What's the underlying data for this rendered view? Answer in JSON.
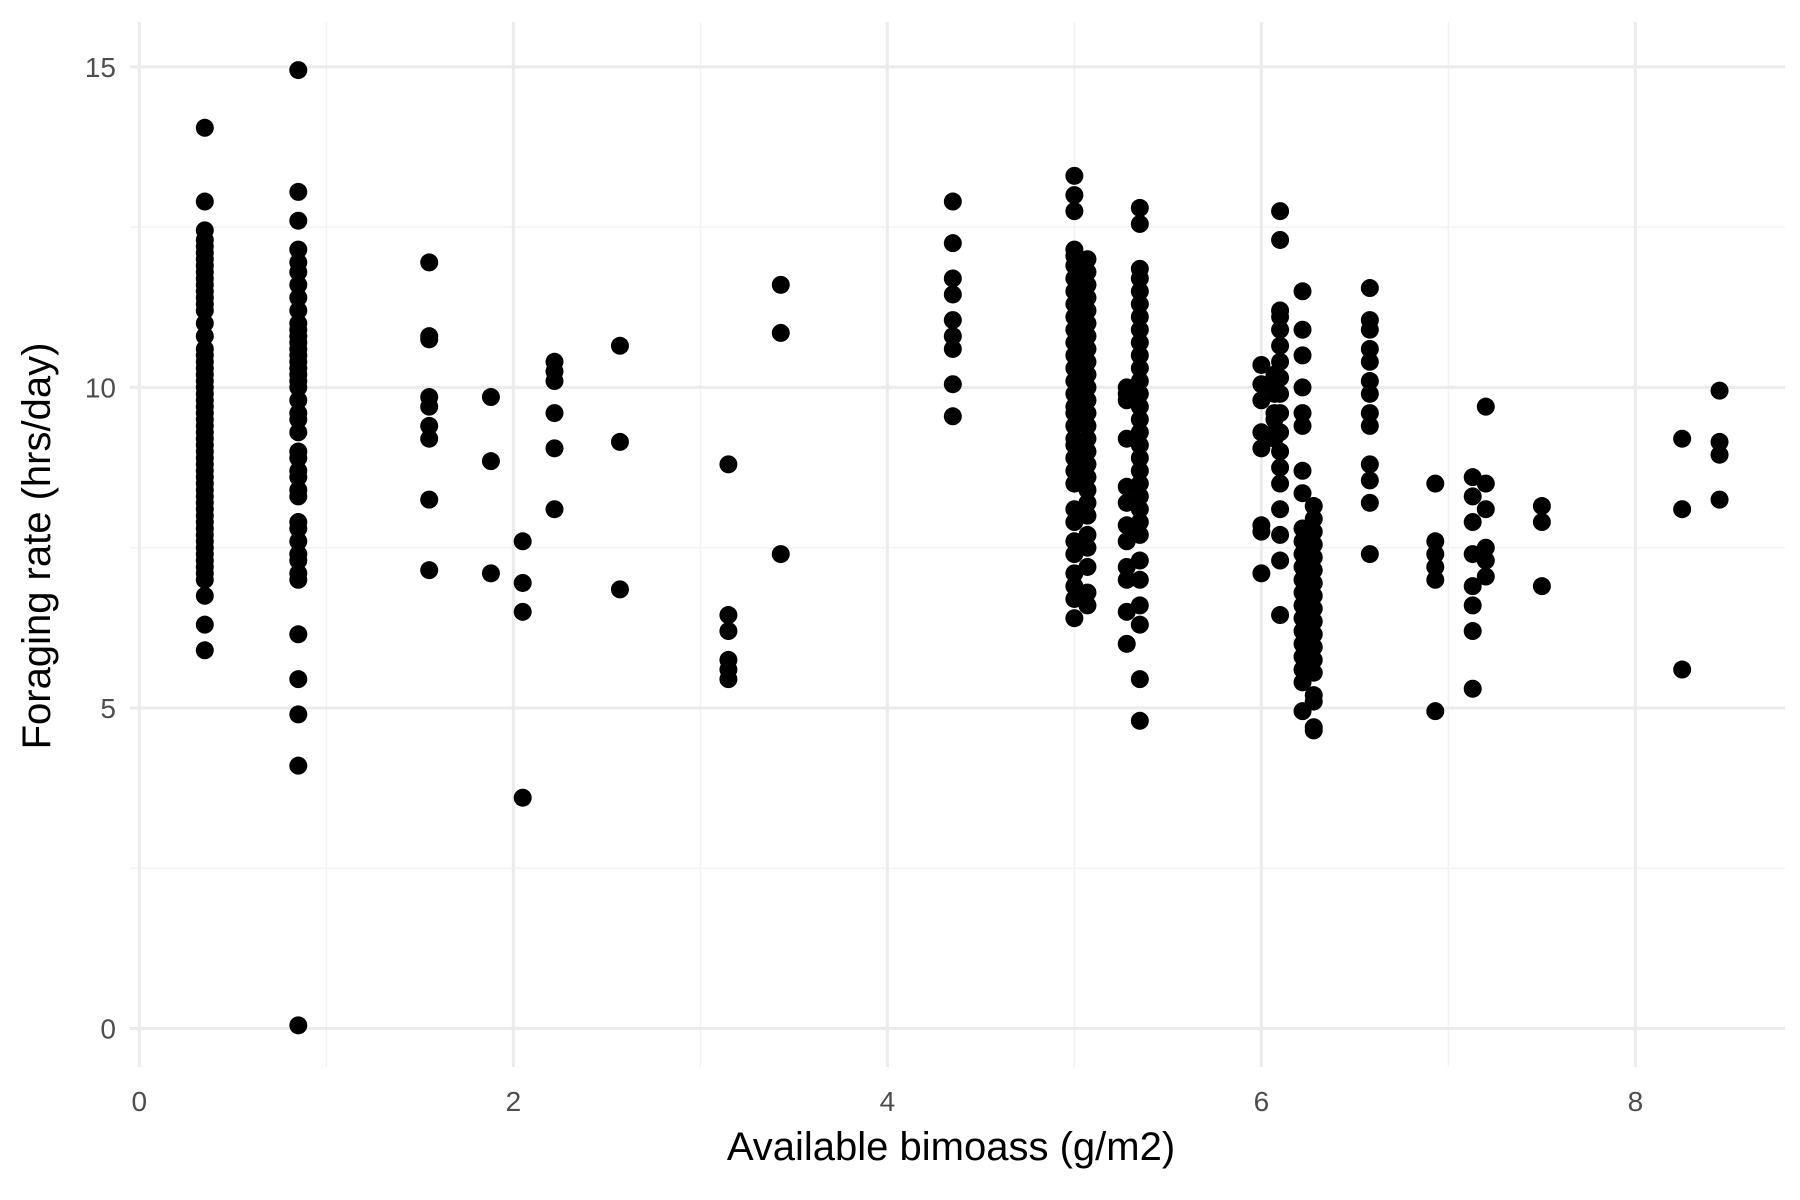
{
  "chart_data": {
    "type": "scatter",
    "title": "",
    "xlabel": "Available bimoass (g/m2)",
    "ylabel": "Foraging rate (hrs/day)",
    "xlim": [
      -0.05,
      8.8
    ],
    "ylim": [
      -0.6,
      15.7
    ],
    "xticks": [
      0,
      2,
      4,
      6,
      8
    ],
    "yticks": [
      0,
      5,
      10,
      15
    ],
    "grid": true,
    "legend": "none",
    "point_color": "#000000",
    "groups": [
      {
        "x": 0.35,
        "y": [
          14.05,
          12.9,
          12.45,
          12.3,
          12.2,
          12.1,
          12.0,
          11.9,
          11.8,
          11.7,
          11.6,
          11.5,
          11.4,
          11.3,
          11.2,
          11.0,
          10.8,
          10.6,
          10.5,
          10.4,
          10.3,
          10.2,
          10.1,
          10.0,
          9.9,
          9.8,
          9.7,
          9.6,
          9.5,
          9.4,
          9.3,
          9.2,
          9.1,
          9.0,
          8.9,
          8.8,
          8.7,
          8.6,
          8.5,
          8.4,
          8.3,
          8.2,
          8.1,
          8.0,
          7.9,
          7.8,
          7.7,
          7.6,
          7.5,
          7.4,
          7.3,
          7.2,
          7.1,
          7.0,
          6.75,
          6.3,
          5.9
        ]
      },
      {
        "x": 0.85,
        "y": [
          14.95,
          13.05,
          12.6,
          12.15,
          11.95,
          11.8,
          11.6,
          11.4,
          11.2,
          11.0,
          10.9,
          10.8,
          10.7,
          10.6,
          10.5,
          10.4,
          10.3,
          10.2,
          10.1,
          10.0,
          9.8,
          9.6,
          9.5,
          9.3,
          9.0,
          8.9,
          8.7,
          8.6,
          8.4,
          8.3,
          7.9,
          7.8,
          7.6,
          7.4,
          7.3,
          7.1,
          7.0,
          6.15,
          5.45,
          4.9,
          4.1,
          0.05
        ]
      },
      {
        "x": 1.55,
        "y": [
          11.95,
          10.8,
          10.75,
          9.85,
          9.7,
          9.4,
          9.2,
          8.25,
          7.15
        ]
      },
      {
        "x": 1.88,
        "y": [
          9.85,
          8.85,
          7.1
        ]
      },
      {
        "x": 2.05,
        "y": [
          7.6,
          6.95,
          6.5,
          3.6
        ]
      },
      {
        "x": 2.22,
        "y": [
          10.4,
          10.25,
          10.1,
          9.6,
          9.05,
          8.1
        ]
      },
      {
        "x": 2.57,
        "y": [
          10.65,
          9.15,
          6.85
        ]
      },
      {
        "x": 3.15,
        "y": [
          8.8,
          6.45,
          6.2,
          5.75,
          5.6,
          5.45
        ]
      },
      {
        "x": 3.43,
        "y": [
          11.6,
          10.85,
          7.4
        ]
      },
      {
        "x": 4.35,
        "y": [
          12.9,
          12.25,
          11.7,
          11.45,
          11.05,
          10.8,
          10.6,
          10.05,
          9.55
        ]
      },
      {
        "x": 5.0,
        "y": [
          13.3,
          13.0,
          12.75,
          12.15,
          12.05,
          11.9,
          11.7,
          11.5,
          11.3,
          11.1,
          10.9,
          10.7,
          10.5,
          10.3,
          10.1,
          9.9,
          9.7,
          9.6,
          9.4,
          9.2,
          9.1,
          8.9,
          8.7,
          8.5,
          8.1,
          7.9,
          7.6,
          7.4,
          7.1,
          6.9,
          6.7,
          6.4
        ]
      },
      {
        "x": 5.07,
        "y": [
          12.0,
          11.8,
          11.6,
          11.4,
          11.2,
          11.0,
          10.8,
          10.6,
          10.4,
          10.2,
          10.0,
          9.8,
          9.6,
          9.4,
          9.2,
          9.0,
          8.8,
          8.6,
          8.4,
          8.2,
          8.0,
          7.7,
          7.5,
          7.2,
          6.8,
          6.6
        ]
      },
      {
        "x": 5.28,
        "y": [
          10.0,
          9.9,
          9.8,
          9.2,
          8.45,
          8.2,
          7.85,
          7.6,
          7.2,
          7.0,
          6.5,
          6.0
        ]
      },
      {
        "x": 5.35,
        "y": [
          12.8,
          12.55,
          11.85,
          11.7,
          11.5,
          11.3,
          11.1,
          10.9,
          10.7,
          10.5,
          10.3,
          10.1,
          9.9,
          9.7,
          9.5,
          9.3,
          9.1,
          8.9,
          8.7,
          8.5,
          8.3,
          8.1,
          7.9,
          7.7,
          7.3,
          7.0,
          6.6,
          6.3,
          5.45,
          4.8
        ]
      },
      {
        "x": 6.0,
        "y": [
          10.35,
          10.05,
          9.8,
          9.3,
          9.05,
          7.85,
          7.75,
          7.1
        ]
      },
      {
        "x": 6.07,
        "y": [
          10.2,
          10.0,
          9.9,
          9.6,
          9.5,
          9.3,
          9.2
        ]
      },
      {
        "x": 6.1,
        "y": [
          12.75,
          12.3,
          11.2,
          11.1,
          10.9,
          10.65,
          10.4,
          10.15,
          9.9,
          9.6,
          9.3,
          9.0,
          8.75,
          8.5,
          8.1,
          7.7,
          7.3,
          6.45
        ]
      },
      {
        "x": 6.22,
        "y": [
          11.5,
          10.9,
          10.5,
          10.0,
          9.6,
          9.4,
          8.7,
          8.35,
          7.8,
          7.6,
          7.4,
          7.2,
          7.0,
          6.8,
          6.6,
          6.4,
          6.2,
          6.0,
          5.8,
          5.6,
          5.4,
          4.95
        ]
      },
      {
        "x": 6.28,
        "y": [
          8.15,
          7.95,
          7.75,
          7.55,
          7.35,
          7.15,
          6.95,
          6.75,
          6.55,
          6.35,
          6.15,
          5.95,
          5.75,
          5.55,
          5.2,
          5.1,
          4.7,
          4.65
        ]
      },
      {
        "x": 6.58,
        "y": [
          11.55,
          11.05,
          10.9,
          10.6,
          10.4,
          10.1,
          9.9,
          9.6,
          9.4,
          8.8,
          8.55,
          8.2,
          7.4
        ]
      },
      {
        "x": 6.93,
        "y": [
          8.5,
          7.6,
          7.4,
          7.2,
          7.0,
          4.95
        ]
      },
      {
        "x": 7.13,
        "y": [
          8.6,
          8.3,
          7.9,
          7.4,
          6.9,
          6.6,
          6.2,
          5.3
        ]
      },
      {
        "x": 7.2,
        "y": [
          9.7,
          8.5,
          8.1,
          7.5,
          7.3,
          7.05
        ]
      },
      {
        "x": 7.5,
        "y": [
          8.15,
          7.9,
          6.9
        ]
      },
      {
        "x": 8.25,
        "y": [
          9.2,
          8.1,
          5.6
        ]
      },
      {
        "x": 8.45,
        "y": [
          9.95,
          9.15,
          8.95,
          8.25
        ]
      }
    ]
  }
}
